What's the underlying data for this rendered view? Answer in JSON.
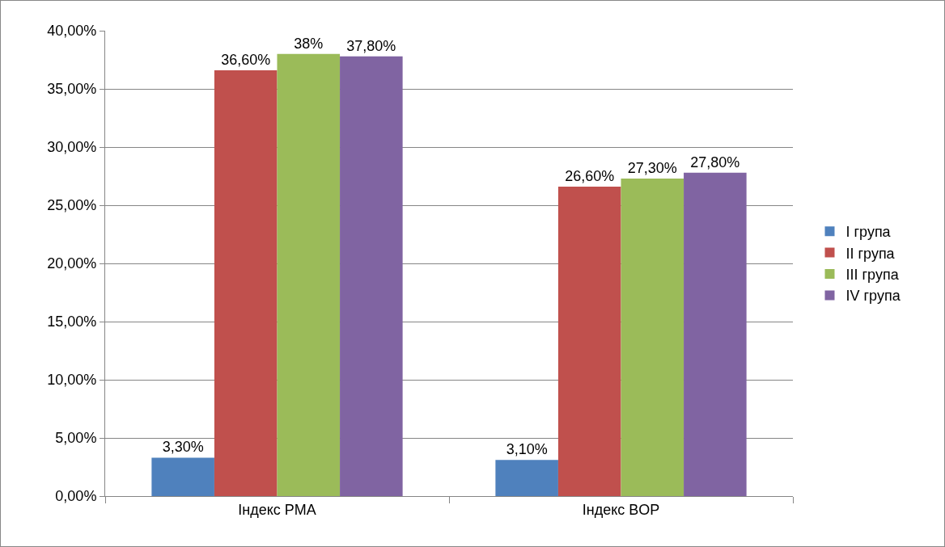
{
  "chart_data": {
    "type": "bar",
    "categories": [
      "Індекс PMA",
      "Індекс BOP"
    ],
    "series": [
      {
        "name": "I група",
        "color": "#4f81bd",
        "values": [
          3.3,
          3.1
        ],
        "value_labels": [
          "3,30%",
          "3,10%"
        ]
      },
      {
        "name": "II група",
        "color": "#c0504d",
        "values": [
          36.6,
          26.6
        ],
        "value_labels": [
          "36,60%",
          "26,60%"
        ]
      },
      {
        "name": "III група",
        "color": "#9bbb59",
        "values": [
          38,
          27.3
        ],
        "value_labels": [
          "38%",
          "27,30%"
        ]
      },
      {
        "name": "IV група",
        "color": "#8064a2",
        "values": [
          37.8,
          27.8
        ],
        "value_labels": [
          "37,80%",
          "27,80%"
        ]
      }
    ],
    "ylim": [
      0,
      40
    ],
    "yticks": [
      {
        "value": 0,
        "label": "0,00%"
      },
      {
        "value": 5,
        "label": "5,00%"
      },
      {
        "value": 10,
        "label": "10,00%"
      },
      {
        "value": 15,
        "label": "15,00%"
      },
      {
        "value": 20,
        "label": "20,00%"
      },
      {
        "value": 25,
        "label": "25,00%"
      },
      {
        "value": 30,
        "label": "30,00%"
      },
      {
        "value": 35,
        "label": "35,00%"
      },
      {
        "value": 40,
        "label": "40,00%"
      }
    ],
    "grid": "y",
    "legend": "right"
  }
}
